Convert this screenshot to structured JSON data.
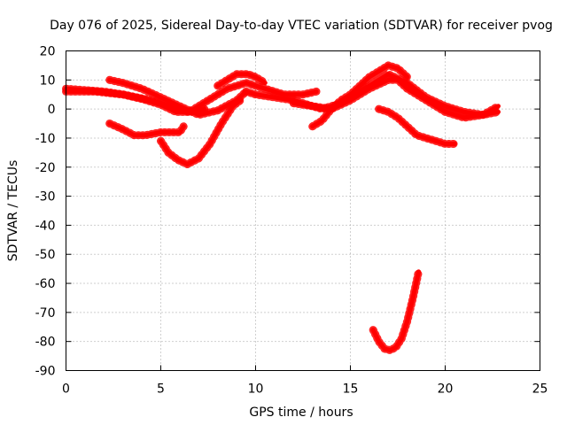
{
  "chart_data": {
    "type": "scatter",
    "title": "Day 076 of 2025, Sidereal Day-to-day VTEC variation (SDTVAR) for receiver pvog",
    "xlabel": "GPS time / hours",
    "ylabel": "SDTVAR / TECUs",
    "xlim": [
      0,
      25
    ],
    "ylim": [
      -90,
      20
    ],
    "xticks": [
      0,
      5,
      10,
      15,
      20,
      25
    ],
    "yticks": [
      20,
      10,
      0,
      -10,
      -20,
      -30,
      -40,
      -50,
      -60,
      -70,
      -80,
      -90
    ],
    "grid": true,
    "marker_color": "#ff0000",
    "series": [
      {
        "name": "arc-a",
        "x": [
          0,
          1,
          2,
          3,
          4,
          5,
          5.8,
          6.5,
          7.3
        ],
        "y": [
          7,
          6.5,
          6,
          5,
          3.5,
          1.5,
          -1,
          -1,
          0
        ]
      },
      {
        "name": "arc-b",
        "x": [
          0,
          1.5,
          3,
          4.5,
          5.5,
          6.5,
          7.5,
          8.5,
          9.5,
          10.5,
          11.5,
          12.5,
          13.2
        ],
        "y": [
          6,
          6,
          5,
          3,
          1,
          -1,
          3,
          7,
          9,
          7,
          5,
          5,
          6
        ]
      },
      {
        "name": "arc-c",
        "x": [
          2.3,
          3,
          4,
          5,
          6,
          7,
          8,
          9,
          9.5
        ],
        "y": [
          10,
          9,
          7,
          4,
          1,
          -2,
          -0.5,
          3,
          6
        ]
      },
      {
        "name": "arc-d",
        "x": [
          8,
          8.5,
          9,
          9.6,
          10,
          10.5
        ],
        "y": [
          8,
          10,
          12,
          12,
          11,
          9
        ]
      },
      {
        "name": "arc-e",
        "x": [
          2.3,
          3,
          3.6,
          4.2,
          5,
          6,
          6.2
        ],
        "y": [
          -5,
          -7,
          -9,
          -9,
          -8,
          -8,
          -6
        ]
      },
      {
        "name": "arc-f",
        "x": [
          5,
          5.4,
          5.9,
          6.4,
          7,
          7.6,
          8.2,
          8.8,
          9.2
        ],
        "y": [
          -11,
          -15,
          -17.5,
          -19,
          -17,
          -12,
          -5,
          1,
          3
        ]
      },
      {
        "name": "arc-g",
        "x": [
          9.5,
          10,
          11,
          12,
          13,
          13.5,
          14,
          14.5,
          15,
          15.5,
          16,
          17,
          18,
          19,
          20,
          21,
          22,
          22.8
        ],
        "y": [
          6,
          5,
          4,
          3,
          1,
          0,
          1,
          2,
          4,
          6,
          8,
          12,
          9,
          4,
          1,
          -1,
          -2,
          -1
        ]
      },
      {
        "name": "arc-h",
        "x": [
          13,
          13.5,
          14,
          14.5,
          15,
          15.5,
          16,
          16.5,
          17,
          17.5,
          18
        ],
        "y": [
          -6,
          -4,
          0,
          3,
          5,
          8,
          11,
          13,
          15,
          14,
          11
        ]
      },
      {
        "name": "arc-i",
        "x": [
          12,
          13,
          14,
          15,
          16,
          17,
          17.5,
          18,
          19,
          20,
          21,
          22,
          22.8
        ],
        "y": [
          2,
          1,
          0,
          3,
          7,
          10,
          10,
          7,
          3,
          -1,
          -3,
          -2,
          1
        ]
      },
      {
        "name": "arc-j",
        "x": [
          16.5,
          17,
          17.5,
          18,
          18.5,
          19,
          19.5,
          20,
          20.5
        ],
        "y": [
          0,
          -1,
          -3,
          -6,
          -9,
          -10,
          -11,
          -12,
          -12
        ]
      },
      {
        "name": "arc-k",
        "x": [
          16.2,
          16.5,
          16.8,
          17.1,
          17.4,
          17.7,
          18,
          18.3,
          18.6
        ],
        "y": [
          -76,
          -80,
          -82.5,
          -83,
          -82,
          -79,
          -73,
          -65,
          -56
        ]
      }
    ]
  }
}
